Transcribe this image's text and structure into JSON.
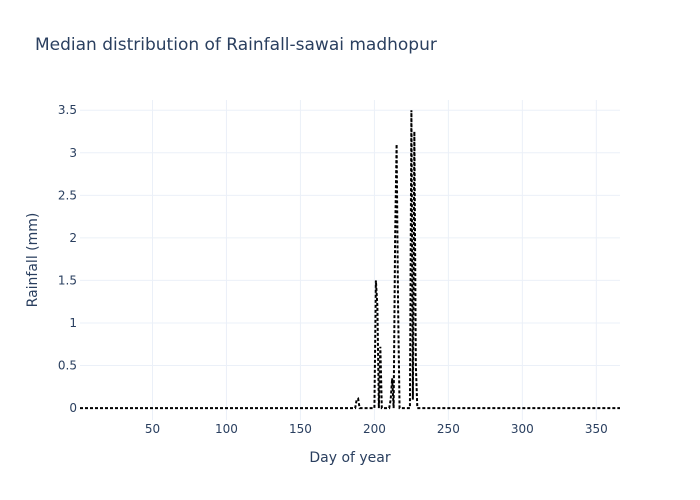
{
  "chart_data": {
    "type": "line",
    "title": "Median distribution of Rainfall-sawai madhopur",
    "xlabel": "Day of year",
    "ylabel": "Rainfall (mm)",
    "xlim": [
      1,
      366
    ],
    "ylim": [
      -0.14,
      3.62
    ],
    "xticks": [
      50,
      100,
      150,
      200,
      250,
      300,
      350
    ],
    "yticks": [
      0,
      0.5,
      1,
      1.5,
      2,
      2.5,
      3,
      3.5
    ],
    "ytick_labels": [
      "0",
      "0.5",
      "1",
      "1.5",
      "2",
      "2.5",
      "3",
      "3.5"
    ],
    "grid": true,
    "line_color": "#000000",
    "line_style": "dotted",
    "series": [
      {
        "x": [
          1,
          187,
          188,
          189,
          190,
          200,
          201,
          202,
          203,
          204,
          205,
          206,
          210,
          211,
          212,
          213,
          214,
          215,
          216,
          217,
          218,
          224,
          225,
          226,
          227,
          228,
          229,
          230,
          366
        ],
        "values": [
          0,
          0,
          0.1,
          0.11,
          0,
          0,
          1.5,
          1.2,
          0,
          0.72,
          0,
          0,
          0,
          0.1,
          0.35,
          0,
          2.0,
          3.1,
          1.2,
          0,
          0,
          0,
          3.5,
          0.1,
          3.25,
          0.5,
          0,
          0,
          0
        ]
      }
    ]
  }
}
